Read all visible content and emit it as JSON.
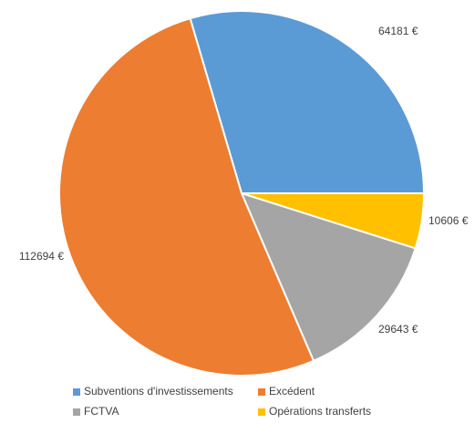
{
  "chart_data": {
    "type": "pie",
    "categories": [
      "Subventions d'investissements",
      "Opérations transferts",
      "FCTVA",
      "Excédent"
    ],
    "values": [
      64181,
      10606,
      29643,
      112694
    ],
    "value_labels": [
      "64181 €",
      "10606 €",
      "29643 €",
      "112694 €"
    ],
    "colors": [
      "#5b9bd5",
      "#ffc000",
      "#a5a5a5",
      "#ed7d31"
    ],
    "legend": "bottom"
  }
}
